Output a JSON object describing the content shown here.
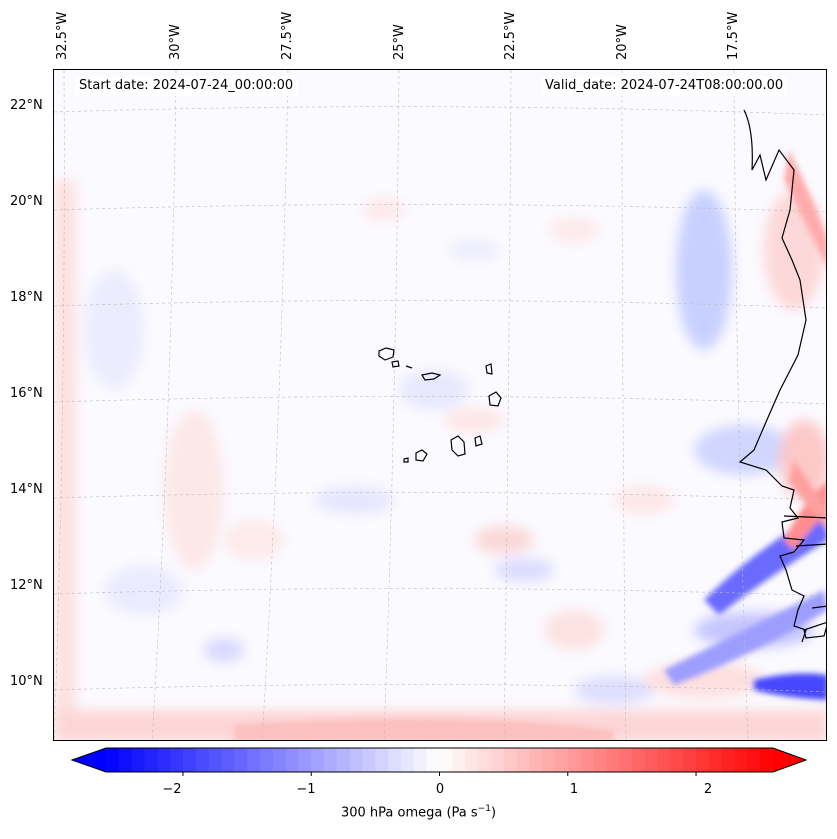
{
  "header": {
    "start_date": "Start date: 2024-07-24_00:00:00",
    "valid_date": "Valid_date: 2024-07-24T08:00:00.00"
  },
  "map": {
    "lon_labels": [
      "32.5°W",
      "30°W",
      "27.5°W",
      "25°W",
      "22.5°W",
      "20°W",
      "17.5°W"
    ],
    "lat_labels": [
      "22°N",
      "20°N",
      "18°N",
      "16°N",
      "14°N",
      "12°N",
      "10°N"
    ],
    "field": "omega",
    "colormap": "bwr",
    "colors": {
      "negative": "#0000ff",
      "zero": "#ffffff",
      "positive": "#ff0000"
    }
  },
  "colorbar": {
    "ticks": [
      "−2",
      "−1",
      "0",
      "1",
      "2"
    ],
    "tick_values": [
      -2,
      -1,
      0,
      1,
      2
    ],
    "range": [
      -2.6,
      2.6
    ],
    "extend": "both",
    "label_main": "300 hPa omega (Pa s",
    "label_exp": "−1",
    "label_close": ")"
  }
}
